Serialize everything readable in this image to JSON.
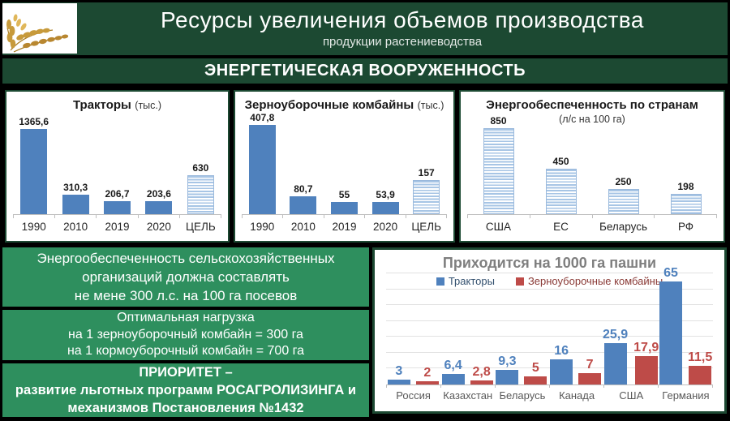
{
  "header": {
    "title": "Ресурсы увеличения объемов производства",
    "subtitle": "продукции растениеводства"
  },
  "banner": {
    "label": "ЭНЕРГЕТИЧЕСКАЯ ВООРУЖЕННОСТЬ"
  },
  "info_blocks": [
    {
      "lines": [
        "Энергообеспеченность сельскохозяйственных",
        "организаций должна составлять",
        "не мене 300 л.с. на 100 га посевов"
      ]
    },
    {
      "lines": [
        "Оптимальная нагрузка",
        "на 1 зерноуборочный комбайн = 300 га",
        "на 1 кормоуборочный комбайн = 700 га"
      ]
    },
    {
      "lines": [
        "ПРИОРИТЕТ –",
        "развитие льготных программ РОСАГРОЛИЗИНГА и",
        "механизмов Постановления №1432"
      ]
    }
  ],
  "colors": {
    "slide_green": "#1c4932",
    "block_green": "#2e8f5e",
    "bar_blue": "#4f81bd",
    "bar_red": "#be4b48",
    "stripe_blue": "#a7c5e5",
    "title_gray": "#7f7f7f"
  },
  "chart_data": [
    {
      "type": "bar",
      "title": "Тракторы",
      "unit": "(тыс.)",
      "categories": [
        "1990",
        "2010",
        "2019",
        "2020",
        "ЦЕЛЬ"
      ],
      "values": [
        1365.6,
        310.3,
        206.7,
        203.6,
        630
      ],
      "value_labels": [
        "1365,6",
        "310,3",
        "206,7",
        "203,6",
        "630"
      ],
      "bar_styles": [
        "solid",
        "solid",
        "solid",
        "solid",
        "striped"
      ],
      "bar_color": "#4f81bd",
      "ylim": [
        0,
        1365.6
      ],
      "grid": false
    },
    {
      "type": "bar",
      "title": "Зерноуборочные комбайны",
      "unit": "(тыс.)",
      "categories": [
        "1990",
        "2010",
        "2019",
        "2020",
        "ЦЕЛЬ"
      ],
      "values": [
        407.8,
        80.7,
        55,
        53.9,
        157
      ],
      "value_labels": [
        "407,8",
        "80,7",
        "55",
        "53,9",
        "157"
      ],
      "bar_styles": [
        "solid",
        "solid",
        "solid",
        "solid",
        "striped"
      ],
      "bar_color": "#4f81bd",
      "ylim": [
        0,
        407.8
      ],
      "grid": false
    },
    {
      "type": "bar",
      "title": "Энергообеспеченность по странам",
      "subtitle": "(л/с на 100 га)",
      "categories": [
        "США",
        "ЕС",
        "Беларусь",
        "РФ"
      ],
      "values": [
        850,
        450,
        250,
        198
      ],
      "value_labels": [
        "850",
        "450",
        "250",
        "198"
      ],
      "bar_styles": [
        "striped",
        "striped",
        "striped",
        "striped"
      ],
      "bar_color": "#a7c5e5",
      "ylim": [
        0,
        850
      ],
      "grid": false
    },
    {
      "type": "bar",
      "title": "Приходится на 1000 га пашни",
      "categories": [
        "Россия",
        "Казахстан",
        "Беларусь",
        "Канада",
        "США",
        "Германия"
      ],
      "series": [
        {
          "name": "Тракторы",
          "color": "#4f81bd",
          "values": [
            3,
            6.4,
            9.3,
            16,
            25.9,
            65
          ],
          "value_labels": [
            "3",
            "6,4",
            "9,3",
            "16",
            "25,9",
            "65"
          ]
        },
        {
          "name": "Зерноуборочные комбайны",
          "color": "#be4b48",
          "values": [
            2,
            2.8,
            5,
            7,
            17.9,
            11.5
          ],
          "value_labels": [
            "2",
            "2,8",
            "5",
            "7",
            "17,9",
            "11,5"
          ]
        }
      ],
      "ylim": [
        0,
        70
      ],
      "grid_step": 10,
      "grid": true,
      "legend_position": "top"
    }
  ]
}
